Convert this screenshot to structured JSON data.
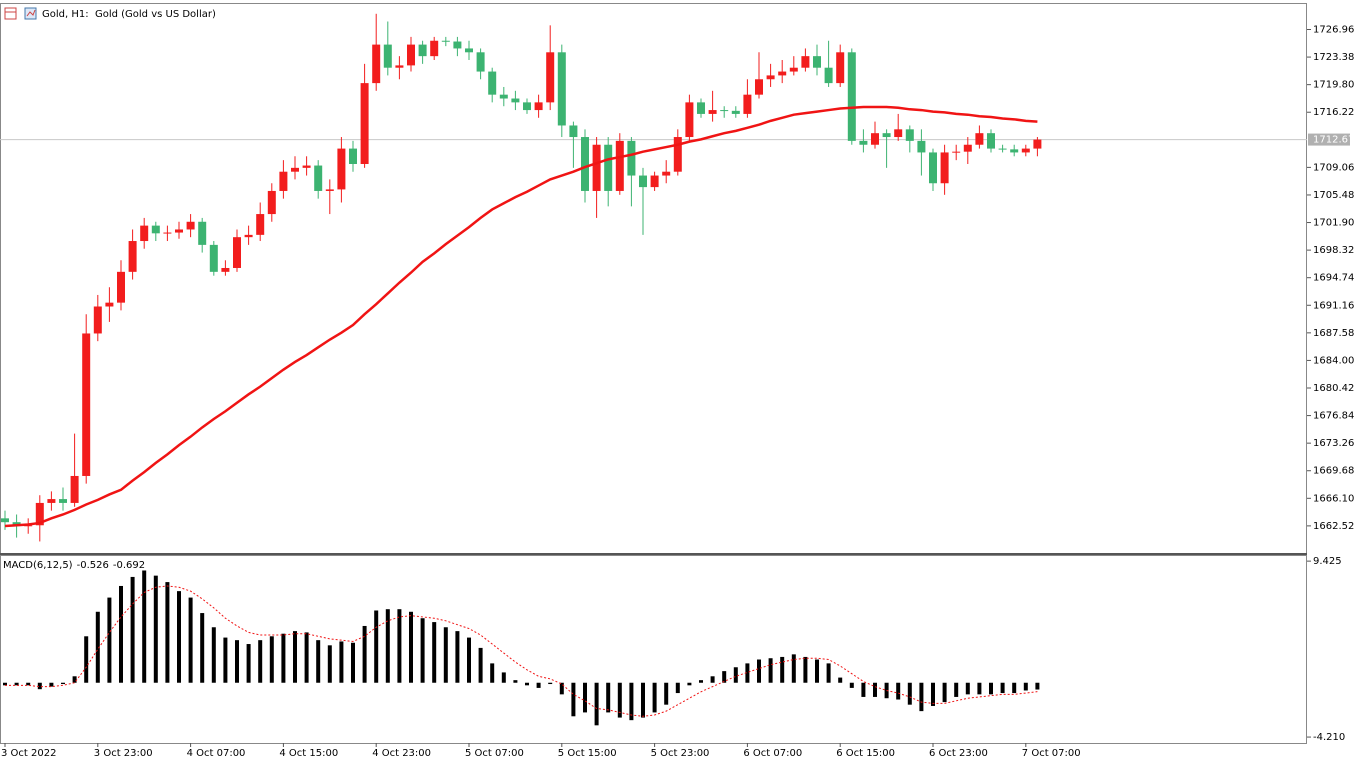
{
  "chart_data": [
    {
      "type": "candlestick",
      "title": "Gold, H1:  Gold (Gold vs US Dollar)",
      "up_color": "#f21d1d",
      "down_color": "#3cb371",
      "categories": [
        "3 Oct 2022",
        null,
        null,
        null,
        null,
        null,
        null,
        null,
        "3 Oct 23:00",
        null,
        null,
        null,
        null,
        null,
        null,
        null,
        "4 Oct 07:00",
        null,
        null,
        null,
        null,
        null,
        null,
        null,
        "4 Oct 15:00",
        null,
        null,
        null,
        null,
        null,
        null,
        null,
        "4 Oct 23:00",
        null,
        null,
        null,
        null,
        null,
        null,
        null,
        "5 Oct 07:00",
        null,
        null,
        null,
        null,
        null,
        null,
        null,
        "5 Oct 15:00",
        null,
        null,
        null,
        null,
        null,
        null,
        null,
        "5 Oct 23:00",
        null,
        null,
        null,
        null,
        null,
        null,
        null,
        "6 Oct 07:00",
        null,
        null,
        null,
        null,
        null,
        null,
        null,
        "6 Oct 15:00",
        null,
        null,
        null,
        null,
        null,
        null,
        null,
        "6 Oct 23:00",
        null,
        null,
        null,
        null,
        null,
        null,
        null,
        "7 Oct 07:00",
        null
      ],
      "open": [
        1663.5,
        1663,
        1662.5,
        1662.6,
        1665.5,
        1666,
        1665.5,
        1669,
        1687.5,
        1691,
        1691.5,
        1695.5,
        1699.5,
        1701.5,
        1700.5,
        1700.6,
        1701,
        1702,
        1699,
        1695.5,
        1696,
        1700,
        1700.3,
        1703,
        1706,
        1708.5,
        1709,
        1709.3,
        1706,
        1706.2,
        1711.5,
        1709.5,
        1720,
        1725,
        1722,
        1722.3,
        1725,
        1723.5,
        1725.5,
        1725.4,
        1724.5,
        1724,
        1721.5,
        1718.5,
        1718,
        1717.5,
        1716.5,
        1717.5,
        1724,
        1714.5,
        1713,
        1706,
        1712,
        1706,
        1712.5,
        1708,
        1706.5,
        1708,
        1708.5,
        1713,
        1717.5,
        1716,
        1716.5,
        1716.4,
        1716,
        1718.5,
        1720.5,
        1721,
        1721.5,
        1722,
        1723.5,
        1722,
        1720,
        1724,
        1712.5,
        1712,
        1713.5,
        1713,
        1714,
        1712.5,
        1711,
        1707,
        1711,
        1711.1,
        1712,
        1713.5,
        1711.5,
        1711.4,
        1711,
        1711.5
      ],
      "high": [
        1664.5,
        1664,
        1663.5,
        1666.5,
        1667,
        1667.5,
        1674.5,
        1690,
        1692.5,
        1693.5,
        1697,
        1701,
        1702.5,
        1702,
        1701.5,
        1702,
        1703,
        1702.5,
        1699.5,
        1697,
        1701,
        1701.5,
        1704.5,
        1707,
        1710,
        1710.5,
        1710.5,
        1710,
        1707.5,
        1713,
        1712.5,
        1722.5,
        1729,
        1728,
        1723.5,
        1726,
        1725.5,
        1726,
        1726,
        1726,
        1725.5,
        1724.5,
        1722,
        1719.5,
        1719,
        1718,
        1718.5,
        1727.5,
        1725,
        1715,
        1714,
        1713,
        1713,
        1713.5,
        1713,
        1709,
        1708.5,
        1710,
        1714,
        1718.5,
        1718,
        1719,
        1717,
        1717,
        1720.5,
        1724,
        1722.5,
        1723,
        1723.5,
        1724.5,
        1725,
        1725.5,
        1725,
        1724.5,
        1714,
        1715,
        1714,
        1716,
        1714.5,
        1714,
        1711.5,
        1712,
        1712,
        1713,
        1714.5,
        1714,
        1712,
        1712,
        1712,
        1713
      ],
      "low": [
        1662,
        1661,
        1661.5,
        1660.5,
        1664.5,
        1664.5,
        1665,
        1668,
        1686.5,
        1689,
        1690.5,
        1694.5,
        1698.5,
        1699.5,
        1699.5,
        1699.8,
        1700,
        1698,
        1695,
        1695,
        1695.5,
        1699,
        1699.5,
        1702,
        1705,
        1707.5,
        1708,
        1705,
        1703,
        1704.5,
        1708.5,
        1709,
        1719,
        1721,
        1720.5,
        1721.5,
        1722.5,
        1723,
        1724.8,
        1723.5,
        1723,
        1720.5,
        1717.5,
        1717,
        1716.5,
        1716,
        1715.5,
        1716.5,
        1713,
        1709,
        1704.5,
        1702.5,
        1704,
        1705.5,
        1704,
        1700.3,
        1706,
        1707,
        1708,
        1712.5,
        1715.5,
        1715,
        1715.5,
        1715.5,
        1715.5,
        1718,
        1719.5,
        1720,
        1721,
        1721.5,
        1721,
        1719.5,
        1719.5,
        1712,
        1711,
        1711.5,
        1709,
        1712.5,
        1711,
        1708,
        1706,
        1705.5,
        1710,
        1709.5,
        1711.5,
        1711,
        1711,
        1710.5,
        1710.5,
        1710.5
      ],
      "close": [
        1663,
        1662.5,
        1662.6,
        1665.5,
        1666,
        1665.5,
        1669,
        1687.5,
        1691,
        1691.5,
        1695.5,
        1699.5,
        1701.5,
        1700.5,
        1700.6,
        1701,
        1702,
        1699,
        1695.5,
        1696,
        1700,
        1700.3,
        1703,
        1706,
        1708.5,
        1709,
        1709.3,
        1706,
        1706.2,
        1711.5,
        1709.5,
        1720,
        1725,
        1722,
        1722.3,
        1725,
        1723.5,
        1725.5,
        1725.4,
        1724.5,
        1724,
        1721.5,
        1718.5,
        1718,
        1717.5,
        1716.5,
        1717.5,
        1724,
        1714.5,
        1713,
        1706,
        1712,
        1706,
        1712.5,
        1708,
        1706.5,
        1708,
        1708.5,
        1713,
        1717.5,
        1716,
        1716.5,
        1716.4,
        1716,
        1718.5,
        1720.5,
        1721,
        1721.5,
        1722,
        1723.5,
        1722,
        1720,
        1724,
        1712.5,
        1712,
        1713.5,
        1713,
        1714,
        1712.5,
        1711,
        1707,
        1711,
        1711.1,
        1712,
        1713.5,
        1711.5,
        1711.4,
        1711,
        1711.5,
        1712.67
      ],
      "ma": {
        "color": "#f01414",
        "values": [
          1662.5,
          1662.6,
          1662.7,
          1662.9,
          1663.5,
          1664.0,
          1664.6,
          1665.3,
          1665.9,
          1666.6,
          1667.2,
          1668.4,
          1669.5,
          1670.7,
          1671.8,
          1673.0,
          1674.1,
          1675.3,
          1676.4,
          1677.4,
          1678.5,
          1679.6,
          1680.6,
          1681.7,
          1682.8,
          1683.8,
          1684.7,
          1685.7,
          1686.7,
          1687.6,
          1688.6,
          1690.0,
          1691.3,
          1692.7,
          1694.1,
          1695.4,
          1696.8,
          1697.9,
          1699.1,
          1700.2,
          1701.3,
          1702.5,
          1703.6,
          1704.4,
          1705.2,
          1705.9,
          1706.7,
          1707.5,
          1708.0,
          1708.5,
          1709.1,
          1709.6,
          1710.1,
          1710.4,
          1710.7,
          1711.1,
          1711.4,
          1711.7,
          1712.0,
          1712.4,
          1712.7,
          1713.1,
          1713.5,
          1713.8,
          1714.2,
          1714.6,
          1715.1,
          1715.5,
          1715.9,
          1716.1,
          1716.3,
          1716.5,
          1716.7,
          1716.8,
          1716.9,
          1716.9,
          1716.9,
          1716.8,
          1716.6,
          1716.5,
          1716.3,
          1716.2,
          1716.0,
          1715.9,
          1715.7,
          1715.6,
          1715.4,
          1715.3,
          1715.1,
          1715.0
        ]
      },
      "ylim": [
        1659.0,
        1730.4
      ],
      "yticks": [
        1726.96,
        1723.38,
        {
          "value": 1719.8,
          "label": "1719.80"
        },
        1716.22,
        1709.06,
        1705.48,
        {
          "value": 1701.9,
          "label": "1701.90"
        },
        1698.32,
        1694.74,
        1691.16,
        1687.58,
        {
          "value": 1684,
          "label": "1684.00"
        },
        1680.42,
        1676.84,
        1673.26,
        1669.68,
        {
          "value": 1666.1,
          "label": "1666.10"
        },
        1662.52
      ]
    },
    {
      "type": "bar",
      "title": "MACD(6,12,5)",
      "color": "#000000",
      "values": [
        -0.2,
        -0.2,
        -0.2,
        -0.5,
        -0.3,
        -0.1,
        0.5,
        3.6,
        5.5,
        6.6,
        7.5,
        8.2,
        8.7,
        8.3,
        7.8,
        7.1,
        6.6,
        5.4,
        4.3,
        3.5,
        3.3,
        3.0,
        3.3,
        3.6,
        3.8,
        4.0,
        3.9,
        3.3,
        2.9,
        3.2,
        3.1,
        4.4,
        5.6,
        5.7,
        5.7,
        5.5,
        5.0,
        4.7,
        4.3,
        4.0,
        3.5,
        2.7,
        1.5,
        0.8,
        0.2,
        -0.2,
        -0.4,
        -0.1,
        -0.9,
        -2.6,
        -2.3,
        -3.3,
        -2.3,
        -2.7,
        -2.9,
        -2.7,
        -2.3,
        -1.7,
        -0.8,
        -0.2,
        0.2,
        0.5,
        0.9,
        1.2,
        1.5,
        1.8,
        1.9,
        2.0,
        2.2,
        2.0,
        1.8,
        1.5,
        0.4,
        -0.4,
        -1.1,
        -1.1,
        -1.2,
        -1.3,
        -1.7,
        -2.2,
        -1.8,
        -1.5,
        -1.1,
        -0.9,
        -0.9,
        -0.9,
        -0.8,
        -0.8,
        -0.6,
        -0.526
      ],
      "signal": {
        "color": "#f01414",
        "values": [
          -0.2,
          -0.2,
          -0.2,
          -0.3,
          -0.3,
          -0.2,
          0.0,
          1.2,
          2.6,
          3.9,
          5.1,
          6.1,
          7.0,
          7.4,
          7.5,
          7.4,
          7.1,
          6.5,
          5.8,
          5.0,
          4.4,
          3.9,
          3.7,
          3.7,
          3.7,
          3.8,
          3.8,
          3.6,
          3.4,
          3.3,
          3.2,
          3.6,
          4.3,
          4.8,
          5.1,
          5.2,
          5.1,
          5.0,
          4.8,
          4.5,
          4.2,
          3.7,
          3.0,
          2.3,
          1.6,
          1.0,
          0.5,
          0.3,
          -0.1,
          -0.9,
          -1.4,
          -2.0,
          -2.1,
          -2.3,
          -2.5,
          -2.6,
          -2.5,
          -2.2,
          -1.7,
          -1.2,
          -0.7,
          -0.3,
          0.1,
          0.5,
          0.8,
          1.1,
          1.4,
          1.6,
          1.8,
          1.9,
          1.9,
          1.8,
          1.3,
          0.7,
          0.1,
          -0.3,
          -0.6,
          -0.8,
          -1.1,
          -1.5,
          -1.6,
          -1.6,
          -1.4,
          -1.2,
          -1.1,
          -1.0,
          -0.9,
          -0.9,
          -0.8,
          -0.692
        ]
      },
      "ylim": [
        -4.67,
        9.9
      ],
      "yticks": [
        9.425,
        {
          "value": -4.21,
          "label": "-4.210"
        }
      ]
    }
  ]
}
